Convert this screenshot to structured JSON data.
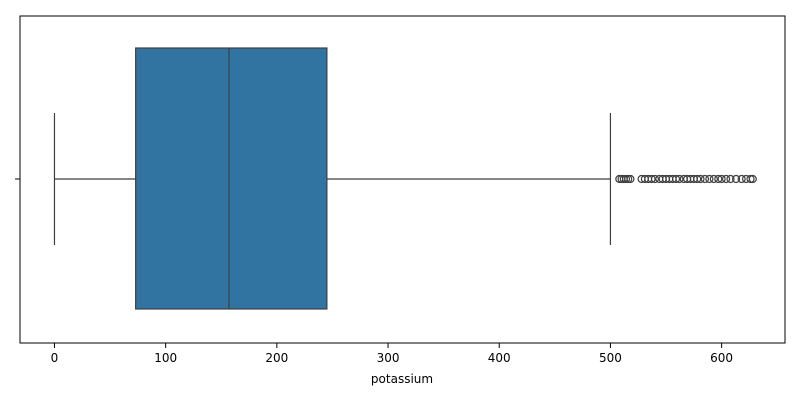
{
  "chart_data": {
    "type": "box",
    "orientation": "horizontal",
    "title": "",
    "xlabel": "potassium",
    "ylabel": "",
    "xlim": [
      -31,
      657
    ],
    "x_ticks": [
      0,
      100,
      200,
      300,
      400,
      500,
      600
    ],
    "grid": false,
    "legend": "none",
    "box_color": "#3274a1",
    "line_color": "#3f3f3f",
    "stats": {
      "whisker_low": 0,
      "q1": 73,
      "median": 157,
      "q3": 245,
      "whisker_high": 500
    },
    "outliers": [
      508,
      510,
      512,
      514,
      516,
      518,
      528,
      531,
      534,
      537,
      540,
      544,
      547,
      550,
      553,
      556,
      559,
      562,
      566,
      569,
      572,
      575,
      578,
      581,
      585,
      589,
      593,
      597,
      600,
      604,
      608,
      613,
      618,
      622,
      626,
      628
    ]
  }
}
